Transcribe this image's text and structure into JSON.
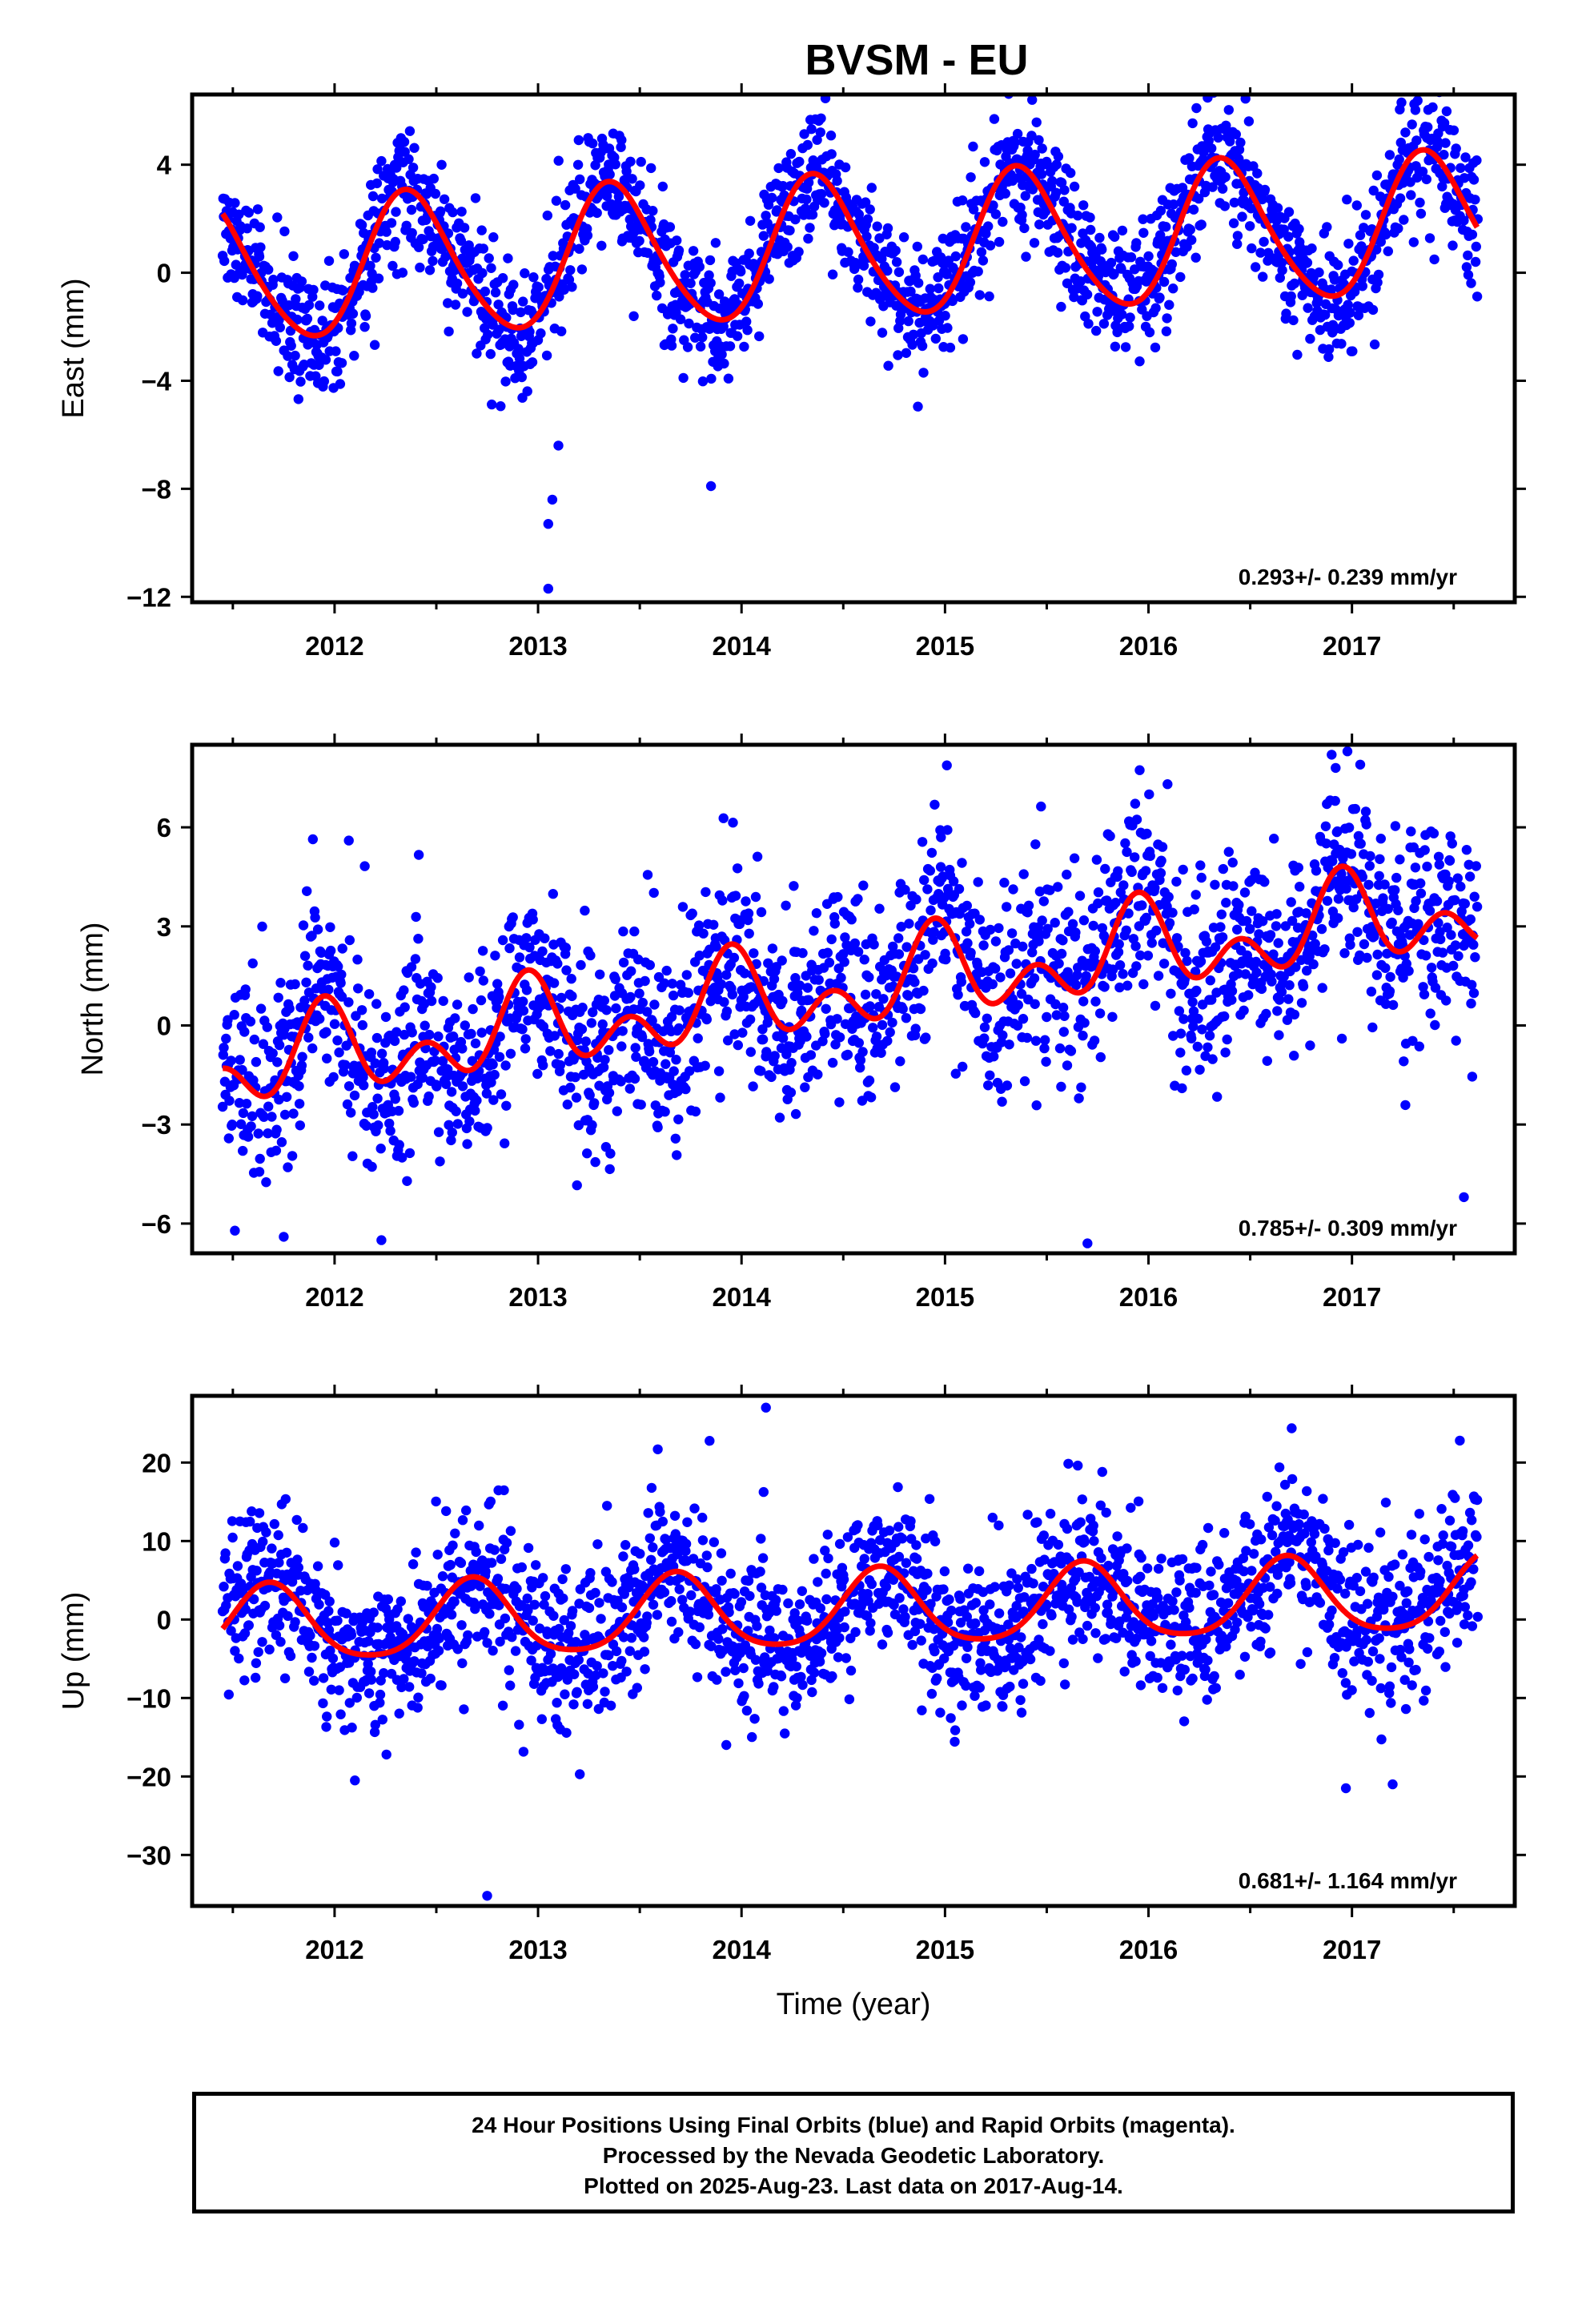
{
  "title": "BVSM - EU",
  "footer": {
    "line1": "24 Hour Positions Using Final Orbits (blue) and Rapid Orbits (magenta).",
    "line2": "Processed by the Nevada Geodetic Laboratory.",
    "line3": "Plotted on 2025-Aug-23. Last data on 2017-Aug-14."
  },
  "colors": {
    "points": "#0000ff",
    "fit": "#ff0000",
    "frame": "#000000"
  },
  "chart_data": [
    {
      "type": "scatter",
      "ylabel": "East (mm)",
      "xlabel": "",
      "xlim": [
        2011.3,
        2017.8
      ],
      "ylim": [
        -12.2,
        6.6
      ],
      "yticks": [
        4,
        0,
        -4,
        -8,
        -12
      ],
      "ytick_labels": [
        "4",
        "0",
        "−4",
        "−8",
        "−12"
      ],
      "xticks": [
        2012,
        2013,
        2014,
        2015,
        2016,
        2017
      ],
      "rate": "0.293+/- 0.239 mm/yr",
      "model": {
        "mean": 0.0,
        "trend": 0.293,
        "annual_amp": 2.6,
        "annual_phase": 2012.37,
        "semi_amp": 0.3,
        "semi_phase": 2012.3,
        "noise": 1.2
      },
      "outliers": [
        [
          2013.05,
          -11.7
        ],
        [
          2013.05,
          -9.3
        ],
        [
          2013.07,
          -8.4
        ],
        [
          2013.85,
          -7.9
        ],
        [
          2013.1,
          -6.4
        ]
      ]
    },
    {
      "type": "scatter",
      "ylabel": "North (mm)",
      "xlabel": "",
      "xlim": [
        2011.3,
        2017.8
      ],
      "ylim": [
        -6.9,
        8.5
      ],
      "yticks": [
        6,
        3,
        0,
        -3,
        -6
      ],
      "ytick_labels": [
        "6",
        "3",
        "0",
        "−3",
        "−6"
      ],
      "xticks": [
        2012,
        2013,
        2014,
        2015,
        2016,
        2017
      ],
      "rate": "0.785+/- 0.309 mm/yr",
      "model": {
        "mean": -1.3,
        "trend": 0.785,
        "annual_amp": 0.9,
        "annual_phase": 2011.95,
        "semi_amp": 0.9,
        "semi_phase": 2011.95,
        "noise": 1.5
      },
      "outliers": [
        [
          2016.9,
          8.2
        ],
        [
          2016.92,
          7.8
        ],
        [
          2014.98,
          5.7
        ],
        [
          2012.07,
          5.6
        ],
        [
          2015.7,
          -6.6
        ],
        [
          2011.75,
          -6.4
        ],
        [
          2017.55,
          -5.2
        ]
      ]
    },
    {
      "type": "scatter",
      "ylabel": "Up (mm)",
      "xlabel": "Time (year)",
      "xlim": [
        2011.3,
        2017.8
      ],
      "ylim": [
        -36.5,
        28.5
      ],
      "yticks": [
        20,
        10,
        0,
        -10,
        -20,
        -30
      ],
      "ytick_labels": [
        "20",
        "10",
        "0",
        "−10",
        "−20",
        "−30"
      ],
      "xticks": [
        2012,
        2013,
        2014,
        2015,
        2016,
        2017
      ],
      "rate": "0.681+/- 1.164 mm/yr",
      "model": {
        "mean": -1.0,
        "trend": 0.681,
        "annual_amp": 4.8,
        "annual_phase": 2011.68,
        "semi_amp": 0.8,
        "semi_phase": 2011.68,
        "noise": 5.0
      },
      "outliers": [
        [
          2012.75,
          -35.2
        ],
        [
          2014.12,
          27.0
        ],
        [
          2016.97,
          -21.5
        ],
        [
          2017.2,
          -21.0
        ],
        [
          2012.1,
          -20.5
        ],
        [
          2017.53,
          22.8
        ]
      ]
    }
  ]
}
